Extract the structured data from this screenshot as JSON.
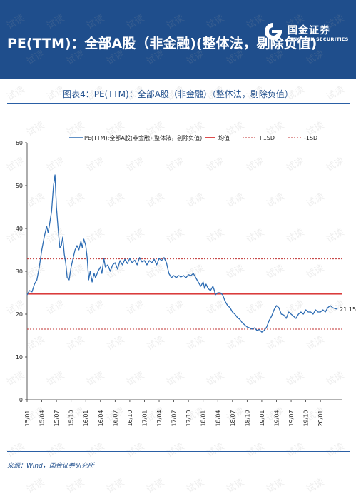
{
  "header": {
    "title": "PE(TTM)：全部A股（非金融)(整体法，剔除负值)",
    "logo_cn": "国金证券",
    "logo_en": "SINOLINK SECURITIES"
  },
  "figure_title": "图表4：PE(TTM)：全部A股（非金融）（整体法，剔除负值）",
  "source": "来源：Wind，国金证券研究所",
  "watermark": "试读",
  "colors": {
    "header_bg": "#1f4e8c",
    "series": "#2e6db4",
    "mean": "#d42020",
    "sd": "#c03030"
  },
  "chart_data": {
    "type": "line",
    "legend_position": "top",
    "grid": false,
    "ylim": [
      0,
      60
    ],
    "yticks": [
      0,
      10,
      20,
      30,
      40,
      50,
      60
    ],
    "xlim": [
      0,
      64.5
    ],
    "xtick_labels": [
      "15/01",
      "15/04",
      "15/07",
      "15/10",
      "16/01",
      "16/04",
      "16/07",
      "16/10",
      "17/01",
      "17/04",
      "17/07",
      "17/10",
      "18/01",
      "18/04",
      "18/07",
      "18/10",
      "19/01",
      "19/04",
      "19/07",
      "19/10",
      "20/01"
    ],
    "xtick_month_index": [
      0,
      3,
      6,
      9,
      12,
      15,
      18,
      21,
      24,
      27,
      30,
      33,
      36,
      39,
      42,
      45,
      48,
      51,
      54,
      57,
      60
    ],
    "mean": 24.7,
    "plus_1sd": 32.9,
    "minus_1sd": 16.5,
    "last_value_label": "21.15",
    "series": [
      {
        "name": "PE(TTM):全部A股(非金融)(整体法，剔除负值)",
        "points": [
          [
            0,
            24.5
          ],
          [
            0.5,
            25.5
          ],
          [
            1,
            25.2
          ],
          [
            1.5,
            27
          ],
          [
            2,
            28
          ],
          [
            2.5,
            31
          ],
          [
            3,
            35
          ],
          [
            3.5,
            38
          ],
          [
            4,
            40.5
          ],
          [
            4.3,
            39
          ],
          [
            4.6,
            41
          ],
          [
            5,
            44
          ],
          [
            5.4,
            50
          ],
          [
            5.7,
            52.5
          ],
          [
            6,
            45
          ],
          [
            6.4,
            39
          ],
          [
            6.7,
            35.5
          ],
          [
            7,
            36
          ],
          [
            7.3,
            38
          ],
          [
            7.6,
            34
          ],
          [
            7.9,
            32
          ],
          [
            8.2,
            28.5
          ],
          [
            8.6,
            28
          ],
          [
            9,
            31
          ],
          [
            9.4,
            33
          ],
          [
            9.8,
            35
          ],
          [
            10.2,
            36
          ],
          [
            10.6,
            35
          ],
          [
            11,
            37
          ],
          [
            11.3,
            35.5
          ],
          [
            11.6,
            37.5
          ],
          [
            12,
            36
          ],
          [
            12.3,
            33
          ],
          [
            12.6,
            28
          ],
          [
            12.9,
            30
          ],
          [
            13.3,
            27.5
          ],
          [
            13.7,
            29.5
          ],
          [
            14,
            28.5
          ],
          [
            14.5,
            30
          ],
          [
            15,
            31
          ],
          [
            15.3,
            29.5
          ],
          [
            15.7,
            33
          ],
          [
            16,
            31
          ],
          [
            16.5,
            31.5
          ],
          [
            17,
            30
          ],
          [
            17.5,
            31.5
          ],
          [
            18,
            32
          ],
          [
            18.5,
            30.5
          ],
          [
            19,
            32.5
          ],
          [
            19.5,
            31.5
          ],
          [
            20,
            32.8
          ],
          [
            20.5,
            31.8
          ],
          [
            21,
            33
          ],
          [
            21.5,
            32
          ],
          [
            22,
            32.6
          ],
          [
            22.5,
            31.5
          ],
          [
            23,
            33.2
          ],
          [
            23.5,
            32.2
          ],
          [
            24,
            32.5
          ],
          [
            24.5,
            31.5
          ],
          [
            25,
            32.5
          ],
          [
            25.5,
            32
          ],
          [
            26,
            32.8
          ],
          [
            26.5,
            31.5
          ],
          [
            27,
            33
          ],
          [
            27.5,
            32.5
          ],
          [
            28,
            33.2
          ],
          [
            28.5,
            32
          ],
          [
            29,
            29.5
          ],
          [
            29.5,
            28.5
          ],
          [
            30,
            29
          ],
          [
            30.5,
            28.5
          ],
          [
            31,
            29
          ],
          [
            31.5,
            28.7
          ],
          [
            32,
            29
          ],
          [
            32.5,
            28.5
          ],
          [
            33,
            29.2
          ],
          [
            33.5,
            29
          ],
          [
            34,
            29.5
          ],
          [
            34.5,
            28.5
          ],
          [
            35,
            27.5
          ],
          [
            35.5,
            26.5
          ],
          [
            36,
            27.5
          ],
          [
            36.3,
            26
          ],
          [
            36.6,
            27
          ],
          [
            37,
            26
          ],
          [
            37.5,
            25.5
          ],
          [
            38,
            26.5
          ],
          [
            38.3,
            25.5
          ],
          [
            38.5,
            24.5
          ],
          [
            39,
            25
          ],
          [
            39.5,
            25
          ],
          [
            40,
            24.5
          ],
          [
            40.5,
            23
          ],
          [
            41,
            22
          ],
          [
            41.5,
            21.5
          ],
          [
            42,
            20.5
          ],
          [
            42.5,
            20
          ],
          [
            43,
            19.2
          ],
          [
            43.5,
            18.8
          ],
          [
            44,
            18
          ],
          [
            44.5,
            17.5
          ],
          [
            45,
            17
          ],
          [
            45.5,
            16.8
          ],
          [
            46,
            16.5
          ],
          [
            46.5,
            16.8
          ],
          [
            47,
            16.2
          ],
          [
            47.5,
            16.4
          ],
          [
            48,
            15.8
          ],
          [
            48.5,
            16.2
          ],
          [
            49,
            17
          ],
          [
            49.5,
            18.5
          ],
          [
            50,
            19.5
          ],
          [
            50.5,
            21
          ],
          [
            51,
            22
          ],
          [
            51.5,
            21.5
          ],
          [
            52,
            20
          ],
          [
            52.5,
            19.8
          ],
          [
            53,
            19
          ],
          [
            53.5,
            20.5
          ],
          [
            54,
            20
          ],
          [
            54.5,
            19.5
          ],
          [
            55,
            19
          ],
          [
            55.5,
            20
          ],
          [
            56,
            20.5
          ],
          [
            56.5,
            20
          ],
          [
            57,
            21
          ],
          [
            57.5,
            20.5
          ],
          [
            58,
            20.5
          ],
          [
            58.5,
            20
          ],
          [
            59,
            21
          ],
          [
            59.5,
            20.5
          ],
          [
            60,
            20.5
          ],
          [
            60.5,
            21
          ],
          [
            61,
            20.5
          ],
          [
            61.5,
            21.5
          ],
          [
            62,
            22
          ],
          [
            62.5,
            21.5
          ],
          [
            63,
            21.3
          ],
          [
            63.5,
            21.15
          ]
        ]
      },
      {
        "name": "均值"
      },
      {
        "name": "+1SD"
      },
      {
        "name": "-1SD"
      }
    ]
  }
}
